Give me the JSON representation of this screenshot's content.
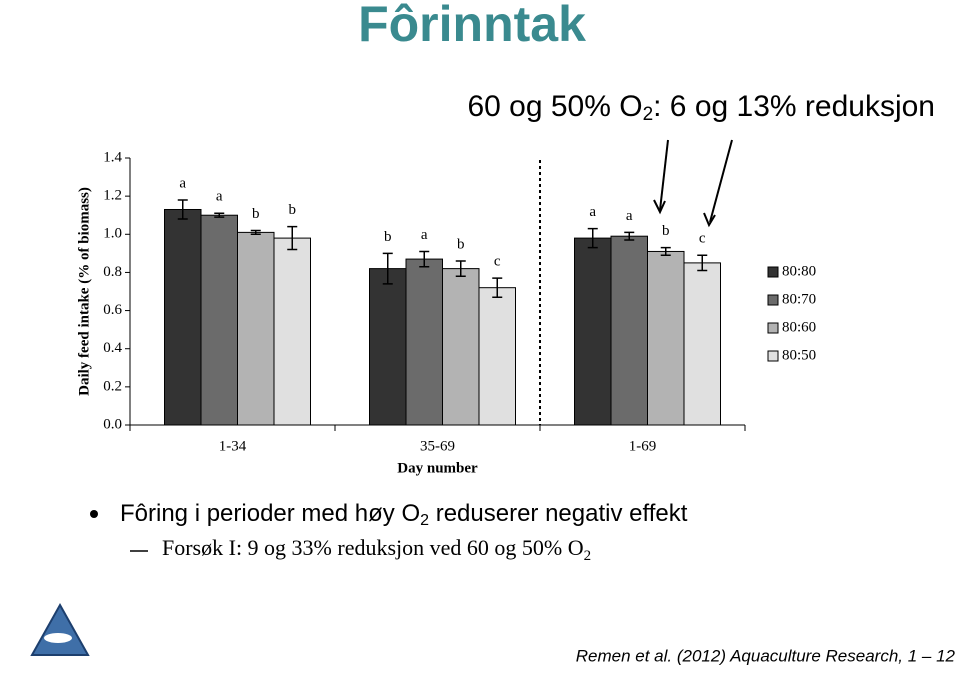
{
  "title": "Fôrinntak",
  "subtitle": [
    "60 og 50% O",
    "2",
    ": 6 og 13% reduksjon"
  ],
  "bullets": [
    [
      "Fôring i perioder med høy O",
      "2",
      " reduserer negativ effekt"
    ],
    [
      "Forsøk I: 9 og 33% reduksjon ved 60 og 50% O",
      "2"
    ]
  ],
  "citation": "Remen et al. (2012) Aquaculture Research, 1 – 12",
  "chart_data": {
    "type": "bar",
    "ylabel": "Daily feed intake (% of biomass)",
    "xlabel": "Day number",
    "categories": [
      "1-34",
      "35-69",
      "1-69"
    ],
    "series": [
      {
        "name": "80:80",
        "color": "#333333",
        "values": [
          1.13,
          0.82,
          0.98
        ],
        "errors": [
          0.05,
          0.08,
          0.05
        ],
        "letters": [
          "a",
          "b",
          "a"
        ]
      },
      {
        "name": "80:70",
        "color": "#6b6b6b",
        "values": [
          1.1,
          0.87,
          0.99
        ],
        "errors": [
          0.01,
          0.04,
          0.02
        ],
        "letters": [
          "a",
          "a",
          "a"
        ]
      },
      {
        "name": "80:60",
        "color": "#b3b3b3",
        "values": [
          1.01,
          0.82,
          0.91
        ],
        "errors": [
          0.01,
          0.04,
          0.02
        ],
        "letters": [
          "b",
          "b",
          "b"
        ]
      },
      {
        "name": "80:50",
        "color": "#e0e0e0",
        "values": [
          0.98,
          0.72,
          0.85
        ],
        "errors": [
          0.06,
          0.05,
          0.04
        ],
        "letters": [
          "b",
          "c",
          "c"
        ]
      }
    ],
    "ylim": [
      0,
      1.4
    ],
    "yticks": [
      {
        "value": 0,
        "label": "0.0"
      },
      0.2,
      0.4,
      0.6,
      0.8,
      {
        "value": 1,
        "label": "1.0"
      },
      1.2,
      1.4
    ],
    "legend": "right"
  }
}
